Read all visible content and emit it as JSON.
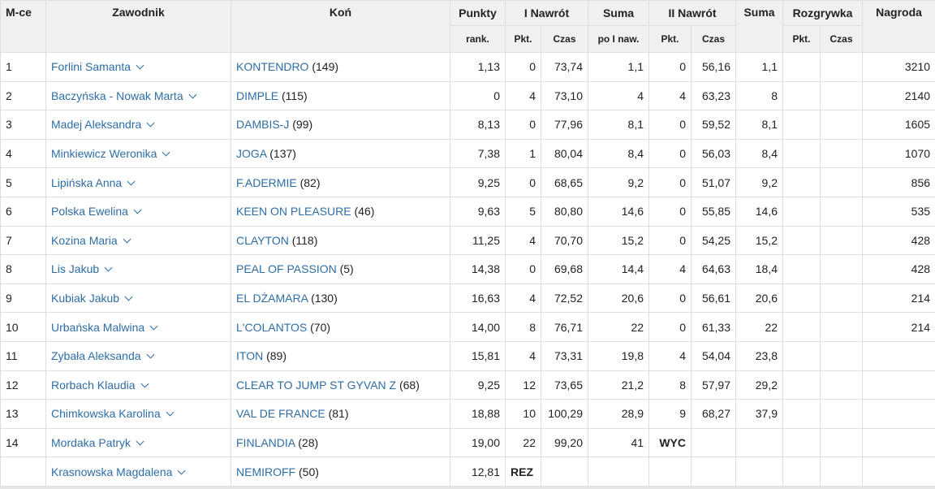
{
  "headers": {
    "place": "M-ce",
    "rider": "Zawodnik",
    "horse": "Koń",
    "points": "Punkty",
    "round1": "I Nawrót",
    "sum1": "Suma",
    "round2": "II Nawrót",
    "sum2": "Suma",
    "jumpoff": "Rozgrywka",
    "prize": "Nagroda",
    "points_sub": "rank.",
    "r1_pkt": "Pkt.",
    "r1_czas": "Czas",
    "sum1_sub": "po I naw.",
    "r2_pkt": "Pkt.",
    "r2_czas": "Czas",
    "jo_pkt": "Pkt.",
    "jo_czas": "Czas"
  },
  "rows": [
    {
      "place": "1",
      "rider": "Forlini Samanta",
      "horse": "KONTENDRO",
      "horse_no": "(149)",
      "rank": "1,13",
      "r1_pkt": "0",
      "r1_czas": "73,74",
      "sum1": "1,1",
      "r2_pkt": "0",
      "r2_czas": "56,16",
      "sum2": "1,1",
      "jo_pkt": "",
      "jo_czas": "",
      "prize": "3210"
    },
    {
      "place": "2",
      "rider": "Baczyńska - Nowak Marta",
      "horse": "DIMPLE",
      "horse_no": "(115)",
      "rank": "0",
      "r1_pkt": "4",
      "r1_czas": "73,10",
      "sum1": "4",
      "r2_pkt": "4",
      "r2_czas": "63,23",
      "sum2": "8",
      "jo_pkt": "",
      "jo_czas": "",
      "prize": "2140"
    },
    {
      "place": "3",
      "rider": "Madej Aleksandra",
      "horse": "DAMBIS-J",
      "horse_no": "(99)",
      "rank": "8,13",
      "r1_pkt": "0",
      "r1_czas": "77,96",
      "sum1": "8,1",
      "r2_pkt": "0",
      "r2_czas": "59,52",
      "sum2": "8,1",
      "jo_pkt": "",
      "jo_czas": "",
      "prize": "1605"
    },
    {
      "place": "4",
      "rider": "Minkiewicz Weronika",
      "horse": "JOGA",
      "horse_no": "(137)",
      "rank": "7,38",
      "r1_pkt": "1",
      "r1_czas": "80,04",
      "sum1": "8,4",
      "r2_pkt": "0",
      "r2_czas": "56,03",
      "sum2": "8,4",
      "jo_pkt": "",
      "jo_czas": "",
      "prize": "1070"
    },
    {
      "place": "5",
      "rider": "Lipińska Anna",
      "horse": "F.ADERMIE",
      "horse_no": "(82)",
      "rank": "9,25",
      "r1_pkt": "0",
      "r1_czas": "68,65",
      "sum1": "9,2",
      "r2_pkt": "0",
      "r2_czas": "51,07",
      "sum2": "9,2",
      "jo_pkt": "",
      "jo_czas": "",
      "prize": "856"
    },
    {
      "place": "6",
      "rider": "Polska Ewelina",
      "horse": "KEEN ON PLEASURE",
      "horse_no": "(46)",
      "rank": "9,63",
      "r1_pkt": "5",
      "r1_czas": "80,80",
      "sum1": "14,6",
      "r2_pkt": "0",
      "r2_czas": "55,85",
      "sum2": "14,6",
      "jo_pkt": "",
      "jo_czas": "",
      "prize": "535"
    },
    {
      "place": "7",
      "rider": "Kozina Maria",
      "horse": "CLAYTON",
      "horse_no": "(118)",
      "rank": "11,25",
      "r1_pkt": "4",
      "r1_czas": "70,70",
      "sum1": "15,2",
      "r2_pkt": "0",
      "r2_czas": "54,25",
      "sum2": "15,2",
      "jo_pkt": "",
      "jo_czas": "",
      "prize": "428"
    },
    {
      "place": "8",
      "rider": "Lis Jakub",
      "horse": "PEAL OF PASSION",
      "horse_no": "(5)",
      "rank": "14,38",
      "r1_pkt": "0",
      "r1_czas": "69,68",
      "sum1": "14,4",
      "r2_pkt": "4",
      "r2_czas": "64,63",
      "sum2": "18,4",
      "jo_pkt": "",
      "jo_czas": "",
      "prize": "428"
    },
    {
      "place": "9",
      "rider": "Kubiak Jakub",
      "horse": "EL DŻAMARA",
      "horse_no": "(130)",
      "rank": "16,63",
      "r1_pkt": "4",
      "r1_czas": "72,52",
      "sum1": "20,6",
      "r2_pkt": "0",
      "r2_czas": "56,61",
      "sum2": "20,6",
      "jo_pkt": "",
      "jo_czas": "",
      "prize": "214"
    },
    {
      "place": "10",
      "rider": "Urbańska Malwina",
      "horse": "L'COLANTOS",
      "horse_no": "(70)",
      "rank": "14,00",
      "r1_pkt": "8",
      "r1_czas": "76,71",
      "sum1": "22",
      "r2_pkt": "0",
      "r2_czas": "61,33",
      "sum2": "22",
      "jo_pkt": "",
      "jo_czas": "",
      "prize": "214"
    },
    {
      "place": "11",
      "rider": "Zybała Aleksanda",
      "horse": "ITON",
      "horse_no": "(89)",
      "rank": "15,81",
      "r1_pkt": "4",
      "r1_czas": "73,31",
      "sum1": "19,8",
      "r2_pkt": "4",
      "r2_czas": "54,04",
      "sum2": "23,8",
      "jo_pkt": "",
      "jo_czas": "",
      "prize": ""
    },
    {
      "place": "12",
      "rider": "Rorbach Klaudia",
      "horse": "CLEAR TO JUMP ST GYVAN Z",
      "horse_no": "(68)",
      "rank": "9,25",
      "r1_pkt": "12",
      "r1_czas": "73,65",
      "sum1": "21,2",
      "r2_pkt": "8",
      "r2_czas": "57,97",
      "sum2": "29,2",
      "jo_pkt": "",
      "jo_czas": "",
      "prize": ""
    },
    {
      "place": "13",
      "rider": "Chimkowska Karolina",
      "horse": "VAL DE FRANCE",
      "horse_no": "(81)",
      "rank": "18,88",
      "r1_pkt": "10",
      "r1_czas": "100,29",
      "sum1": "28,9",
      "r2_pkt": "9",
      "r2_czas": "68,27",
      "sum2": "37,9",
      "jo_pkt": "",
      "jo_czas": "",
      "prize": ""
    },
    {
      "place": "14",
      "rider": "Mordaka Patryk",
      "horse": "FINLANDIA",
      "horse_no": "(28)",
      "rank": "19,00",
      "r1_pkt": "22",
      "r1_czas": "99,20",
      "sum1": "41",
      "r2_status": "WYC",
      "r2_pkt": "",
      "r2_czas": "",
      "sum2": "",
      "jo_pkt": "",
      "jo_czas": "",
      "prize": ""
    },
    {
      "place": "",
      "rider": "Krasnowska Magdalena",
      "horse": "NEMIROFF",
      "horse_no": "(50)",
      "rank": "12,81",
      "r1_status": "REZ",
      "r1_pkt": "",
      "r1_czas": "",
      "sum1": "",
      "r2_pkt": "",
      "r2_czas": "",
      "sum2": "",
      "jo_pkt": "",
      "jo_czas": "",
      "prize": ""
    }
  ],
  "icons": {
    "rider_expand": "chevron-down-icon"
  },
  "colors": {
    "link": "#2e6da4",
    "header_bg": "#f0f0f0",
    "border": "#dedede"
  }
}
